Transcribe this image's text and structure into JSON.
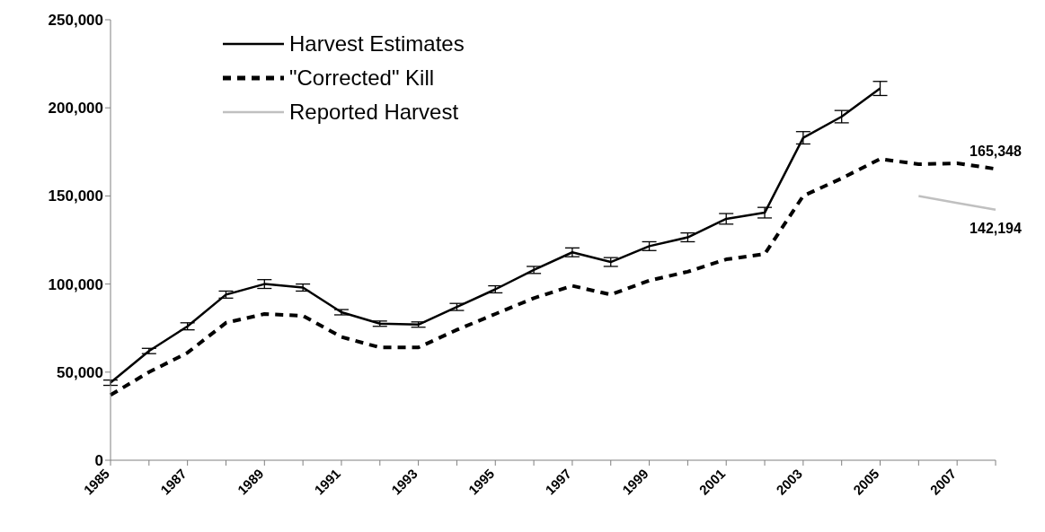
{
  "chart_data": {
    "type": "line",
    "categories": [
      "1985",
      null,
      "1987",
      null,
      "1989",
      null,
      "1991",
      null,
      "1993",
      null,
      "1995",
      null,
      "1997",
      null,
      "1999",
      null,
      "2001",
      null,
      "2003",
      null,
      "2005",
      null,
      "2007",
      null
    ],
    "series": [
      {
        "name": "Harvest Estimates",
        "color": "#000000",
        "line_style": "solid",
        "values": [
          44000,
          62000,
          76000,
          94000,
          100000,
          98000,
          84000,
          77500,
          77000,
          87000,
          97000,
          108000,
          118000,
          112500,
          121500,
          126500,
          137000,
          140500,
          183000,
          195000,
          211000,
          null,
          null,
          null
        ],
        "errors": [
          1500,
          1500,
          2000,
          2000,
          2500,
          2000,
          1500,
          1500,
          1500,
          2000,
          2000,
          2000,
          2500,
          2500,
          2500,
          2500,
          3000,
          3000,
          3500,
          3500,
          4000,
          null,
          null,
          null
        ]
      },
      {
        "name": "\"Corrected\" Kill",
        "color": "#000000",
        "line_style": "dashed",
        "values": [
          37000,
          50000,
          61000,
          78000,
          83000,
          82000,
          70000,
          64000,
          64000,
          74000,
          83000,
          92000,
          99000,
          94000,
          102000,
          107000,
          114000,
          117000,
          150000,
          160000,
          171000,
          168000,
          168500,
          165348
        ],
        "value_labels": [
          null,
          null,
          null,
          null,
          null,
          null,
          null,
          null,
          null,
          null,
          null,
          null,
          null,
          null,
          null,
          null,
          null,
          null,
          null,
          null,
          null,
          null,
          null,
          "165,348"
        ]
      },
      {
        "name": "Reported Harvest",
        "color": "#c0c0c0",
        "line_style": "solid",
        "values": [
          null,
          null,
          null,
          null,
          null,
          null,
          null,
          null,
          null,
          null,
          null,
          null,
          null,
          null,
          null,
          null,
          null,
          null,
          null,
          null,
          null,
          150000,
          146000,
          142194
        ],
        "value_labels": [
          null,
          null,
          null,
          null,
          null,
          null,
          null,
          null,
          null,
          null,
          null,
          null,
          null,
          null,
          null,
          null,
          null,
          null,
          null,
          null,
          null,
          null,
          null,
          "142,194"
        ]
      }
    ],
    "ylim": [
      0,
      250000
    ],
    "yticks": [
      0,
      {
        "value": 50000,
        "label": "50,000"
      },
      {
        "value": 100000,
        "label": "100,000"
      },
      {
        "value": 150000,
        "label": "150,000"
      },
      {
        "value": 200000,
        "label": "200,000"
      },
      {
        "value": 250000,
        "label": "250,000"
      }
    ],
    "grid": false,
    "legend": "top left",
    "marker": "none"
  }
}
